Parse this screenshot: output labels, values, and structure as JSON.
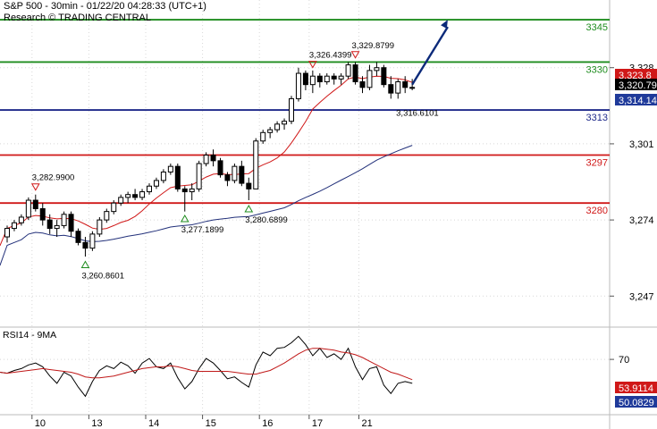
{
  "header": {
    "title": "S&P 500 - 30min - 01/22/20 04:28:33 (UTC+1)",
    "subtitle": "Research © TRADING CENTRAL"
  },
  "chart_data": [
    {
      "type": "candlestick",
      "title": "S&P 500 - 30min - 01/22/20 04:28:33 (UTC+1)",
      "ylim": [
        3236,
        3352
      ],
      "yticks": [
        "3,328",
        "3,301",
        "3,274",
        "3,247"
      ],
      "xticks": [
        "10",
        "13",
        "14",
        "15",
        "16",
        "17",
        "21"
      ],
      "grid": true,
      "levels": [
        {
          "value": 3345,
          "label": "3345",
          "color": "#1e8c1e"
        },
        {
          "value": 3330,
          "label": "3330",
          "color": "#1e8c1e"
        },
        {
          "value": 3313,
          "label": "3313",
          "color": "#1f2a8a"
        },
        {
          "value": 3297,
          "label": "3297",
          "color": "#d01818"
        },
        {
          "value": 3280,
          "label": "3280",
          "color": "#d01818"
        }
      ],
      "price_labels": [
        {
          "value": 3323.8,
          "label": "3,323.8",
          "color": "#d01818"
        },
        {
          "value": 3320.79,
          "label": "3,320.79",
          "color": "#000000"
        },
        {
          "value": 3314.14,
          "label": "3,314.14",
          "color": "#1f3a9a"
        }
      ],
      "annotations": [
        {
          "label": "3,282.9900",
          "value": 3282.99,
          "bar": 4,
          "kind": "high"
        },
        {
          "label": "3,260.8601",
          "value": 3260.8601,
          "bar": 11,
          "kind": "low"
        },
        {
          "label": "3,277.1899",
          "value": 3277.1899,
          "bar": 25,
          "kind": "low"
        },
        {
          "label": "3,280.6899",
          "value": 3280.6899,
          "bar": 34,
          "kind": "low"
        },
        {
          "label": "3,326.4399",
          "value": 3326.4399,
          "bar": 43,
          "kind": "high"
        },
        {
          "label": "3,329.8799",
          "value": 3329.8799,
          "bar": 49,
          "kind": "high"
        },
        {
          "label": "3,316.6101",
          "value": 3316.6101,
          "bar": 57,
          "kind": "note"
        }
      ],
      "candles": [
        [
          3268,
          3272,
          3266,
          3271
        ],
        [
          3271,
          3274,
          3270,
          3273
        ],
        [
          3273,
          3276,
          3272,
          3275
        ],
        [
          3275,
          3282,
          3274,
          3281
        ],
        [
          3281,
          3283,
          3277,
          3278
        ],
        [
          3278,
          3280,
          3272,
          3274
        ],
        [
          3274,
          3276,
          3269,
          3271
        ],
        [
          3271,
          3274,
          3268,
          3272
        ],
        [
          3272,
          3277,
          3271,
          3276
        ],
        [
          3276,
          3277,
          3268,
          3270
        ],
        [
          3270,
          3271,
          3265,
          3266
        ],
        [
          3266,
          3268,
          3261,
          3264
        ],
        [
          3264,
          3270,
          3263,
          3269
        ],
        [
          3269,
          3275,
          3268,
          3274
        ],
        [
          3274,
          3278,
          3273,
          3277
        ],
        [
          3277,
          3281,
          3276,
          3280
        ],
        [
          3280,
          3283,
          3279,
          3282
        ],
        [
          3282,
          3284,
          3280,
          3283
        ],
        [
          3283,
          3285,
          3281,
          3282
        ],
        [
          3282,
          3285,
          3281,
          3284
        ],
        [
          3284,
          3287,
          3283,
          3286
        ],
        [
          3286,
          3289,
          3285,
          3288
        ],
        [
          3288,
          3292,
          3287,
          3291
        ],
        [
          3291,
          3294,
          3290,
          3293
        ],
        [
          3293,
          3294,
          3284,
          3285
        ],
        [
          3285,
          3286,
          3277,
          3284
        ],
        [
          3284,
          3287,
          3281,
          3285
        ],
        [
          3285,
          3295,
          3284,
          3294
        ],
        [
          3294,
          3298,
          3293,
          3297
        ],
        [
          3297,
          3299,
          3293,
          3295
        ],
        [
          3295,
          3296,
          3289,
          3290
        ],
        [
          3290,
          3291,
          3286,
          3288
        ],
        [
          3288,
          3294,
          3287,
          3293
        ],
        [
          3293,
          3295,
          3286,
          3287
        ],
        [
          3287,
          3289,
          3281,
          3285
        ],
        [
          3285,
          3303,
          3285,
          3302
        ],
        [
          3302,
          3306,
          3301,
          3305
        ],
        [
          3305,
          3307,
          3303,
          3306
        ],
        [
          3306,
          3309,
          3305,
          3308
        ],
        [
          3308,
          3310,
          3306,
          3309
        ],
        [
          3309,
          3318,
          3308,
          3317
        ],
        [
          3317,
          3328,
          3316,
          3326
        ],
        [
          3326,
          3327,
          3320,
          3322
        ],
        [
          3322,
          3327,
          3319,
          3325
        ],
        [
          3325,
          3326,
          3321,
          3323
        ],
        [
          3323,
          3326,
          3322,
          3325
        ],
        [
          3325,
          3326,
          3322,
          3324
        ],
        [
          3324,
          3326,
          3322,
          3325
        ],
        [
          3325,
          3330,
          3324,
          3329
        ],
        [
          3329,
          3330,
          3322,
          3323
        ],
        [
          3323,
          3325,
          3319,
          3321
        ],
        [
          3321,
          3329,
          3320,
          3327
        ],
        [
          3327,
          3330,
          3325,
          3328
        ],
        [
          3328,
          3329,
          3321,
          3322
        ],
        [
          3322,
          3325,
          3317,
          3319
        ],
        [
          3319,
          3324,
          3317,
          3323
        ],
        [
          3323,
          3325,
          3319,
          3321
        ],
        [
          3321,
          3324,
          3320,
          3321
        ]
      ],
      "arrow": {
        "from_bar": 57,
        "from_value": 3322,
        "to_bar": 62,
        "to_value": 3345
      }
    },
    {
      "type": "line",
      "title": "RSI14 - 9MA",
      "ylim": [
        10,
        105
      ],
      "yticks": [
        "70"
      ],
      "series": [
        {
          "name": "RSI14",
          "color": "#000000",
          "values": [
            55,
            58,
            60,
            64,
            66,
            62,
            52,
            44,
            56,
            52,
            40,
            30,
            46,
            58,
            63,
            60,
            67,
            63,
            55,
            66,
            71,
            62,
            60,
            66,
            50,
            38,
            46,
            60,
            71,
            66,
            58,
            49,
            51,
            45,
            40,
            64,
            78,
            74,
            82,
            83,
            88,
            95,
            86,
            74,
            82,
            72,
            76,
            70,
            82,
            62,
            48,
            60,
            62,
            42,
            33,
            44,
            46,
            44
          ]
        },
        {
          "name": "9MA",
          "color": "#c01818",
          "values": [
            55,
            56,
            57,
            58,
            59,
            60,
            59,
            58,
            57,
            56,
            54,
            51,
            50,
            50,
            51,
            52,
            54,
            56,
            58,
            60,
            61,
            62,
            62,
            63,
            62,
            60,
            58,
            57,
            57,
            57,
            57,
            57,
            56,
            55,
            54,
            54,
            56,
            58,
            62,
            66,
            71,
            76,
            80,
            82,
            82,
            81,
            80,
            78,
            77,
            75,
            72,
            68,
            64,
            60,
            56,
            54,
            51,
            48
          ]
        }
      ],
      "price_labels": [
        {
          "value": 53.9114,
          "label": "53.9114",
          "color": "#d01818"
        },
        {
          "value": 50.0829,
          "label": "50.0829",
          "color": "#1f3a9a"
        }
      ]
    }
  ]
}
